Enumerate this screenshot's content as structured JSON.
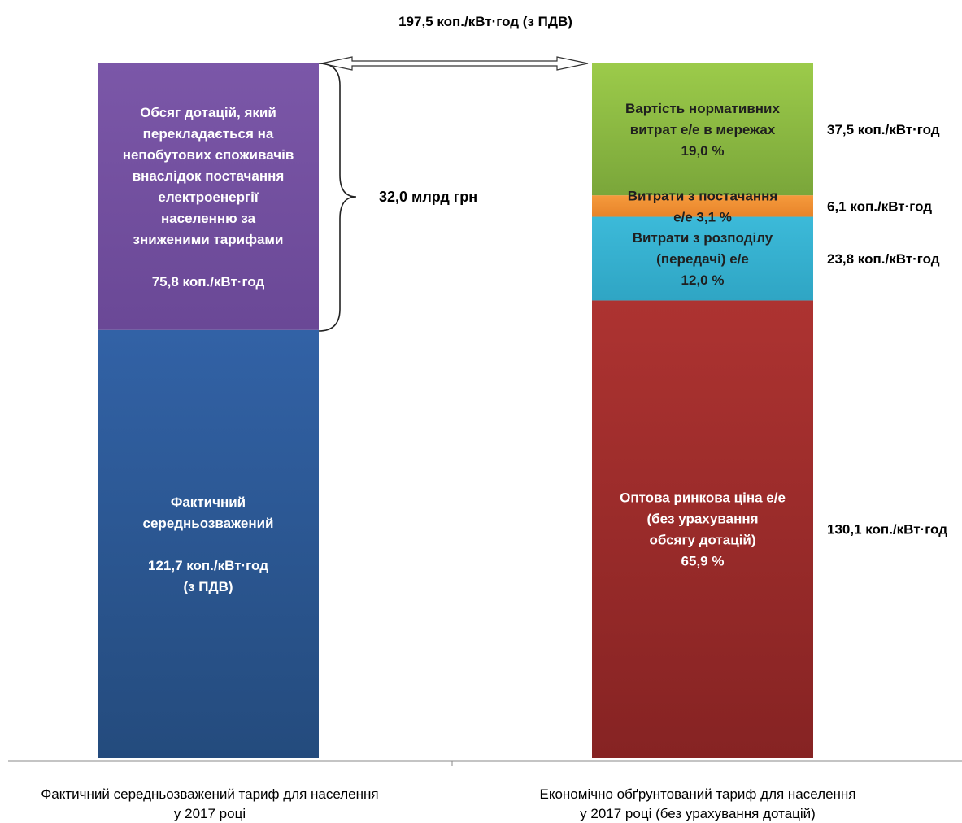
{
  "chart_data": {
    "type": "bar",
    "stacked": true,
    "unit": "коп./кВт·год",
    "total_label": "197,5 коп./кВт·год (з ПДВ)",
    "ylim": [
      0,
      197.5
    ],
    "grid": false,
    "legend": "none",
    "categories": [
      [
        "Фактичний середньозважений тариф для населення",
        "у 2017 році"
      ],
      [
        "Економічно обґрунтований тариф для населення",
        "у 2017 році (без урахування  дотацій)"
      ]
    ],
    "bars": [
      {
        "segments": [
          {
            "value": 121.7,
            "color_top": "#3262a6",
            "color_bottom": "#244b7d",
            "text_color": "#ffffff",
            "lines": [
              "Фактичний",
              "середньозважений",
              "",
              "121,7 коп./кВт·год",
              "(з ПДВ)"
            ]
          },
          {
            "value": 75.8,
            "color_top": "#7b57a8",
            "color_bottom": "#6a4896",
            "text_color": "#ffffff",
            "lines": [
              "Обсяг дотацій, який",
              "перекладається на",
              "непобутових споживачів",
              "внаслідок постачання",
              "електроенергії",
              "населенню за",
              "зниженими тарифами",
              "",
              "75,8 коп./кВт·год"
            ]
          }
        ]
      },
      {
        "segments": [
          {
            "value": 130.1,
            "percent": 65.9,
            "color_top": "#ad3331",
            "color_bottom": "#862323",
            "text_color": "#ffffff",
            "lines": [
              "Оптова ринкова ціна е/е",
              "(без урахування",
              "обсягу дотацій)",
              "65,9 %"
            ],
            "side_label": "130,1 коп./кВт·год"
          },
          {
            "value": 23.8,
            "percent": 12.0,
            "color_top": "#3cbad9",
            "color_bottom": "#2fa5c4",
            "text_color": "#1f1f1f",
            "lines": [
              "Витрати з розподілу",
              "(передачі) е/е",
              "12,0 %"
            ],
            "side_label": "23,8 коп./кВт·год"
          },
          {
            "value": 6.1,
            "percent": 3.1,
            "color_top": "#f59a3c",
            "color_bottom": "#e8842a",
            "text_color": "#1f1f1f",
            "lines": [
              "Витрати з постачання",
              "е/е  3,1 %"
            ],
            "side_label": "6,1 коп./кВт·год"
          },
          {
            "value": 37.5,
            "percent": 19.0,
            "color_top": "#9ccb4a",
            "color_bottom": "#7aa63a",
            "text_color": "#1f1f1f",
            "lines": [
              "Вартість нормативних",
              "витрат е/е в мережах",
              "19,0 %"
            ],
            "side_label": "37,5 коп./кВт·год"
          }
        ]
      }
    ],
    "annotations": {
      "brace_label": "32,0 млрд грн"
    }
  }
}
